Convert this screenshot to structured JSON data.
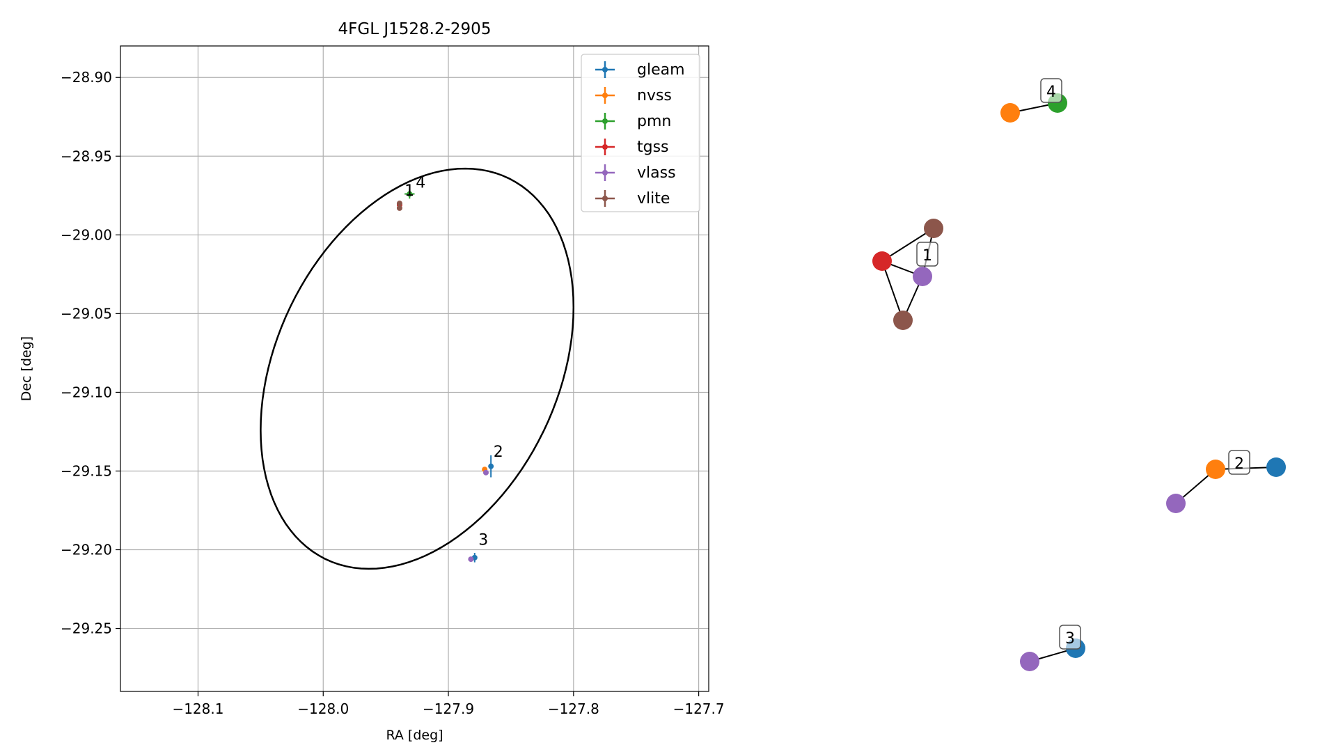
{
  "colors": {
    "gleam": "#1f77b4",
    "nvss": "#ff7f0e",
    "pmn": "#2ca02c",
    "tgss": "#d62728",
    "vlass": "#9467bd",
    "vlite": "#8c564b",
    "grid": "#b0b0b0",
    "axes": "#000000"
  },
  "chart_data": [
    {
      "type": "scatter",
      "title": "4FGL J1528.2-2905",
      "xlabel": "RA [deg]",
      "ylabel": "Dec [deg]",
      "xlim": [
        -128.162,
        -127.692
      ],
      "ylim": [
        -29.29,
        -28.88
      ],
      "xticks": [
        -128.1,
        -128.0,
        -127.9,
        -127.8,
        -127.7
      ],
      "xtick_labels": [
        "−128.1",
        "−128.0",
        "−127.9",
        "−127.8",
        "−127.7"
      ],
      "yticks": [
        -28.9,
        -28.95,
        -29.0,
        -29.05,
        -29.1,
        -29.15,
        -29.2,
        -29.25
      ],
      "ytick_labels": [
        "−28.90",
        "−28.95",
        "−29.00",
        "−29.05",
        "−29.10",
        "−29.15",
        "−29.20",
        "−29.25"
      ],
      "grid": true,
      "legend_position": "top-right",
      "legend": [
        "gleam",
        "nvss",
        "pmn",
        "tgss",
        "vlass",
        "vlite"
      ],
      "ellipse": {
        "center": [
          -127.925,
          -29.085
        ],
        "semi_x": 0.125,
        "semi_y": 0.121,
        "shear": 0.039
      },
      "series": [
        {
          "name": "gleam",
          "points": [
            {
              "x": -127.866,
              "y": -29.147,
              "xerr": 0.002,
              "yerr": 0.007
            },
            {
              "x": -127.879,
              "y": -29.205,
              "xerr": 0.002,
              "yerr": 0.003
            }
          ]
        },
        {
          "name": "nvss",
          "points": [
            {
              "x": -127.871,
              "y": -29.149,
              "xerr": 0.001,
              "yerr": 0.001
            }
          ]
        },
        {
          "name": "pmn",
          "points": [
            {
              "x": -127.931,
              "y": -28.974,
              "xerr": 0.004,
              "yerr": 0.003
            }
          ]
        },
        {
          "name": "tgss",
          "points": [
            {
              "x": -127.939,
              "y": -28.981,
              "xerr": 0.001,
              "yerr": 0.001
            }
          ]
        },
        {
          "name": "vlass",
          "points": [
            {
              "x": -127.87,
              "y": -29.151,
              "xerr": 0.0005,
              "yerr": 0.0005
            },
            {
              "x": -127.882,
              "y": -29.206,
              "xerr": 0.0005,
              "yerr": 0.0005
            }
          ]
        },
        {
          "name": "vlite",
          "points": [
            {
              "x": -127.939,
              "y": -28.98,
              "xerr": 0.001,
              "yerr": 0.001
            },
            {
              "x": -127.939,
              "y": -28.983,
              "xerr": 0.001,
              "yerr": 0.001
            }
          ]
        }
      ],
      "annotations": [
        {
          "text": "1",
          "x": -127.935,
          "y": -28.975
        },
        {
          "text": "4",
          "x": -127.926,
          "y": -28.97
        },
        {
          "text": "2",
          "x": -127.864,
          "y": -29.141
        },
        {
          "text": "3",
          "x": -127.876,
          "y": -29.197
        }
      ]
    },
    {
      "type": "network",
      "groups": [
        {
          "label": "1",
          "nodes": [
            {
              "survey": "vlite"
            },
            {
              "survey": "tgss"
            },
            {
              "survey": "vlass"
            },
            {
              "survey": "vlite"
            }
          ]
        },
        {
          "label": "2",
          "nodes": [
            {
              "survey": "nvss"
            },
            {
              "survey": "gleam"
            },
            {
              "survey": "vlass"
            }
          ]
        },
        {
          "label": "3",
          "nodes": [
            {
              "survey": "gleam"
            },
            {
              "survey": "vlass"
            }
          ]
        },
        {
          "label": "4",
          "nodes": [
            {
              "survey": "nvss"
            },
            {
              "survey": "pmn"
            }
          ]
        }
      ]
    }
  ]
}
